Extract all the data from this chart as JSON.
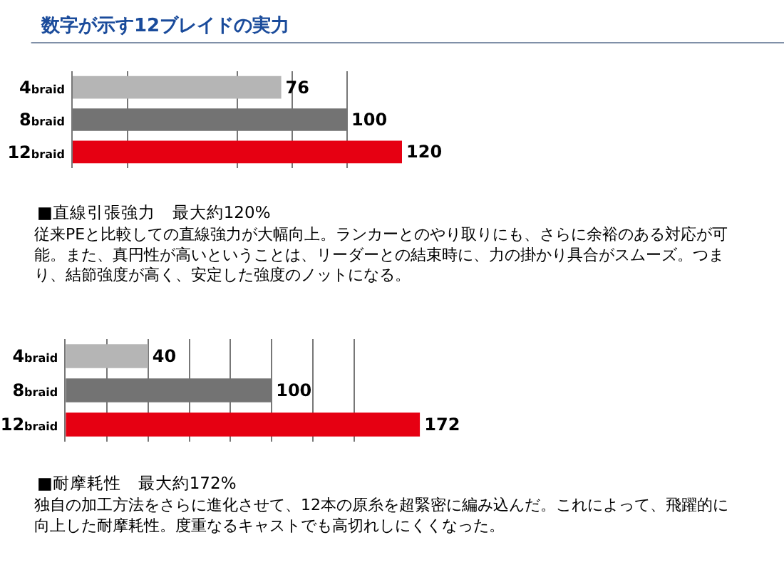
{
  "chart_data": [
    {
      "type": "bar",
      "orientation": "horizontal",
      "title": "数字が示す12ブレイドの実力",
      "categories": [
        "4braid",
        "8braid",
        "12braid"
      ],
      "values": [
        76,
        100,
        120
      ],
      "colors": [
        "#b5b5b5",
        "#737373",
        "#e60012"
      ],
      "data_labels": true,
      "xlim": [
        0,
        120
      ],
      "xticks": [
        {
          "value": 20,
          "label": null
        },
        {
          "value": 60,
          "label": null
        },
        {
          "value": 80,
          "label": null
        },
        {
          "value": 100,
          "label": null
        }
      ],
      "grid": "x",
      "tick_labels": "y",
      "annotations": [
        "■直線引張強力　最大約120%",
        "従来PEと比較しての直線強力が大幅向上。ランカーとのやり取りにも、さらに余裕のある対応が可能。また、真円性が高いということは、リーダーとの結束時に、力の掛かり具合がスムーズ。つまり、結節強度が高く、安定した強度のノットになる。"
      ]
    },
    {
      "type": "bar",
      "orientation": "horizontal",
      "categories": [
        "4braid",
        "8braid",
        "12braid"
      ],
      "values": [
        40,
        100,
        172
      ],
      "colors": [
        "#b5b5b5",
        "#737373",
        "#e60012"
      ],
      "data_labels": true,
      "xlim": [
        0,
        172
      ],
      "xticks": [
        {
          "value": 20,
          "label": null
        },
        {
          "value": 40,
          "label": null
        },
        {
          "value": 60,
          "label": null
        },
        {
          "value": 80,
          "label": null
        },
        {
          "value": 100,
          "label": null
        },
        {
          "value": 120,
          "label": null
        },
        {
          "value": 140,
          "label": null
        }
      ],
      "grid": "x",
      "tick_labels": "y",
      "annotations": [
        "■耐摩耗性　最大約172%",
        "独自の加工方法をさらに進化させて、12本の原糸を超緊密に編み込んだ。これによって、飛躍的に向上した耐摩耗性。度重なるキャストでも高切れしにくくなった。"
      ]
    }
  ]
}
